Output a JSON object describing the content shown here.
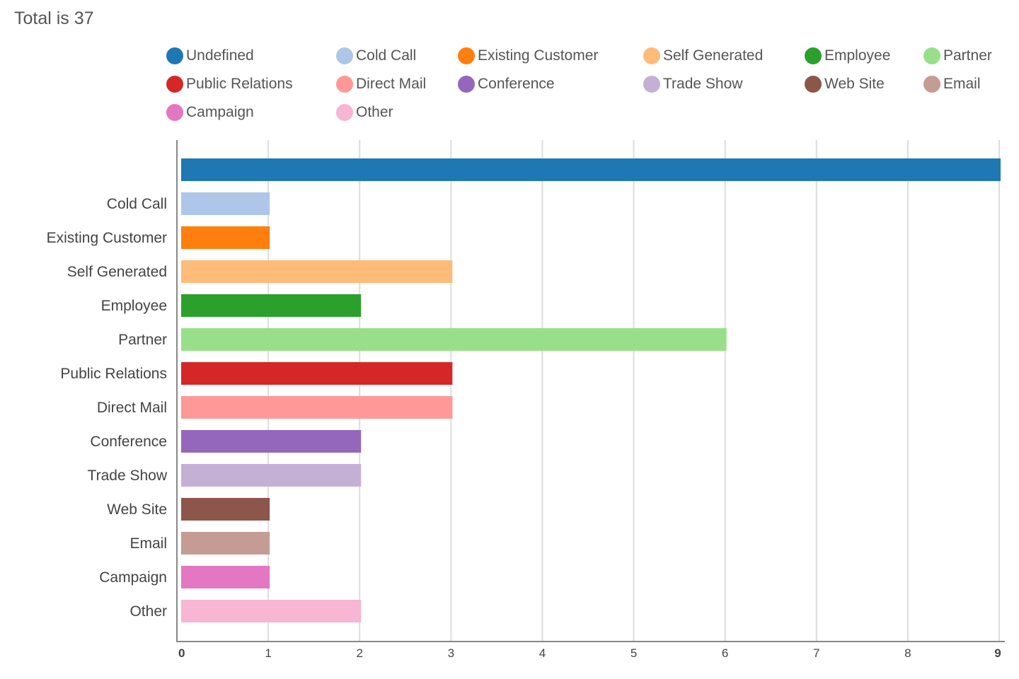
{
  "chart_data": {
    "type": "bar",
    "orientation": "horizontal",
    "title": "Total is 37",
    "categories": [
      "Undefined",
      "Cold Call",
      "Existing Customer",
      "Self Generated",
      "Employee",
      "Partner",
      "Public Relations",
      "Direct Mail",
      "Conference",
      "Trade Show",
      "Web Site",
      "Email",
      "Campaign",
      "Other"
    ],
    "axis_category_labels": [
      "",
      "Cold Call",
      "Existing Customer",
      "Self Generated",
      "Employee",
      "Partner",
      "Public Relations",
      "Direct Mail",
      "Conference",
      "Trade Show",
      "Web Site",
      "Email",
      "Campaign",
      "Other"
    ],
    "values": [
      9,
      1,
      1,
      3,
      2,
      6,
      3,
      3,
      2,
      2,
      1,
      1,
      1,
      2
    ],
    "colors": [
      "#1f77b4",
      "#aec7e8",
      "#ff7f0e",
      "#ffbb78",
      "#2ca02c",
      "#98df8a",
      "#d62728",
      "#ff9896",
      "#9467bd",
      "#c5b0d5",
      "#8c564b",
      "#c49c94",
      "#e377c2",
      "#f7b6d2"
    ],
    "legend": [
      "Undefined",
      "Cold Call",
      "Existing Customer",
      "Self Generated",
      "Employee",
      "Partner",
      "Public Relations",
      "Direct Mail",
      "Conference",
      "Trade Show",
      "Web Site",
      "Email",
      "Campaign",
      "Other"
    ],
    "legend_placement": "top",
    "xlim": [
      0,
      9
    ],
    "xticks": [
      "0",
      "1",
      "2",
      "3",
      "4",
      "5",
      "6",
      "7",
      "8",
      "9"
    ],
    "bold_ticks": [
      "0",
      "9"
    ],
    "grid": true,
    "xlabel": "",
    "ylabel": ""
  }
}
